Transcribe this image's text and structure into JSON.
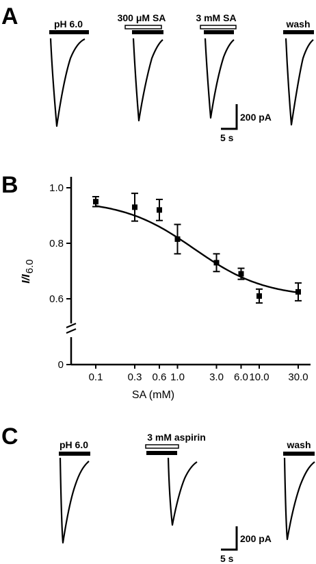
{
  "panel_a": {
    "label": "A",
    "traces": [
      {
        "bar_label": "pH 6.0",
        "drug": false
      },
      {
        "bar_label": "300 μM SA",
        "drug": true
      },
      {
        "bar_label": "3 mM SA",
        "drug": true
      },
      {
        "bar_label": "wash",
        "drug": false
      }
    ],
    "scale_current": "200 pA",
    "scale_time": "5 s"
  },
  "panel_c": {
    "label": "C",
    "traces": [
      {
        "bar_label": "pH 6.0",
        "drug": false
      },
      {
        "bar_label": "3 mM aspirin",
        "drug": true
      },
      {
        "bar_label": "wash",
        "drug": false
      }
    ],
    "scale_current": "200 pA",
    "scale_time": "5 s"
  },
  "chart_data": {
    "type": "scatter",
    "panel_label": "B",
    "title": "",
    "xlabel": "SA (mM)",
    "ylabel_main": "I/I",
    "ylabel_sub": "6.0",
    "x_scale": "log",
    "x": [
      "0.1",
      "0.3",
      "0.6",
      "1.0",
      "3.0",
      "6.0",
      "10.0",
      "30.0"
    ],
    "x_values": [
      0.1,
      0.3,
      0.6,
      1.0,
      3.0,
      6.0,
      10.0,
      30.0
    ],
    "y": [
      0.95,
      0.93,
      0.92,
      0.815,
      0.73,
      0.69,
      0.61,
      0.625
    ],
    "err": [
      0.018,
      0.05,
      0.038,
      0.053,
      0.032,
      0.02,
      0.025,
      0.032
    ],
    "yticks": [
      "0",
      "0.6",
      "0.8",
      "1.0"
    ],
    "ylim_upper": [
      0.55,
      1.0
    ],
    "y_axis_break": true,
    "fit": {
      "type": "Hill",
      "top": 0.955,
      "bottom": 0.605,
      "ic50": 1.6,
      "n": 1.0
    },
    "grid": false,
    "legend": "none"
  }
}
